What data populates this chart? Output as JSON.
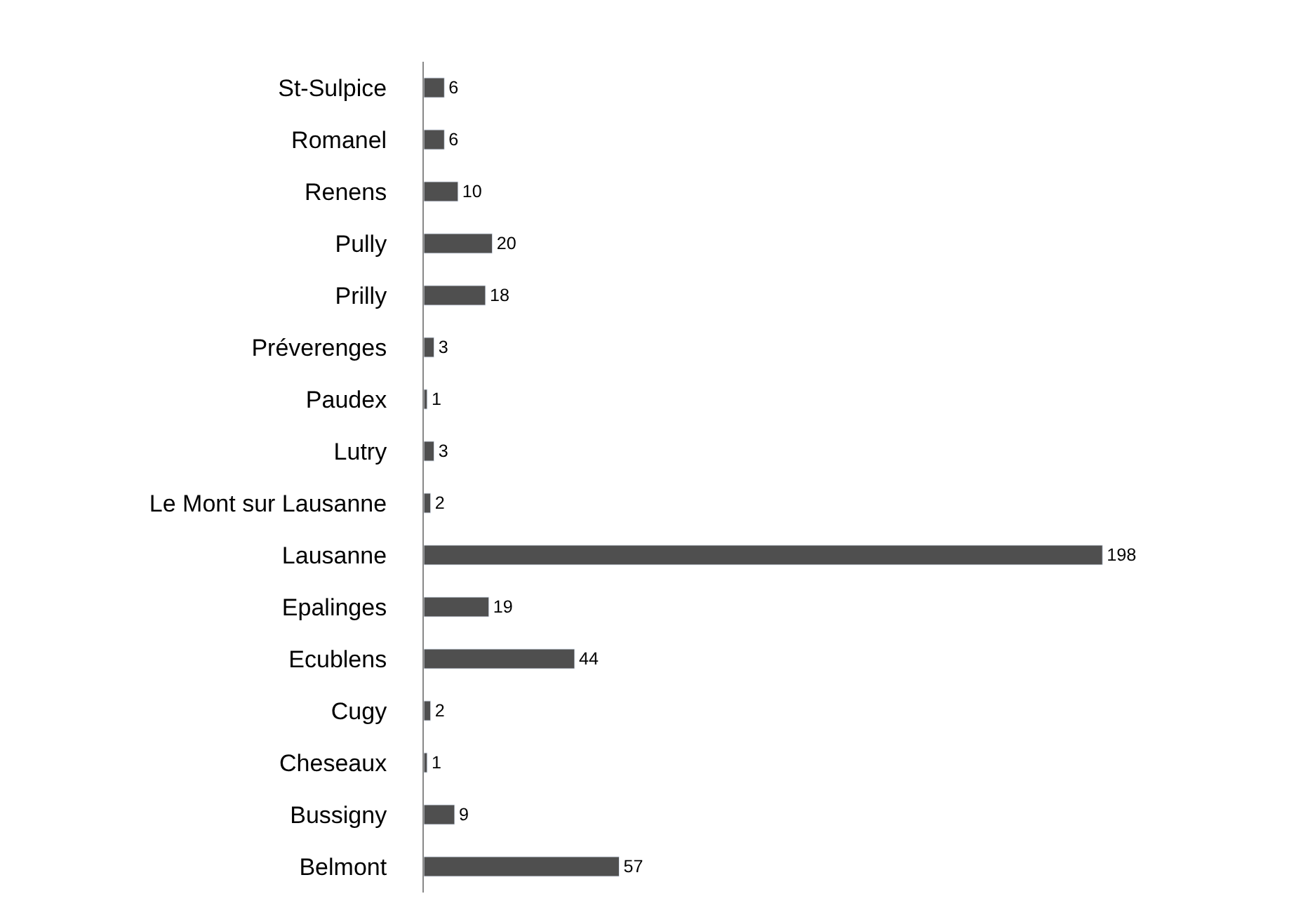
{
  "chart_data": {
    "type": "bar",
    "orientation": "horizontal",
    "data_labels": true,
    "legend": false,
    "categories": [
      "St-Sulpice",
      "Romanel",
      "Renens",
      "Pully",
      "Prilly",
      "Préverenges",
      "Paudex",
      "Lutry",
      "Le Mont sur Lausanne",
      "Lausanne",
      "Epalinges",
      "Ecublens",
      "Cugy",
      "Cheseaux",
      "Bussigny",
      "Belmont"
    ],
    "values": [
      6,
      6,
      10,
      20,
      18,
      3,
      1,
      3,
      2,
      198,
      19,
      44,
      2,
      1,
      9,
      57
    ],
    "color": "#4f4f4f"
  }
}
